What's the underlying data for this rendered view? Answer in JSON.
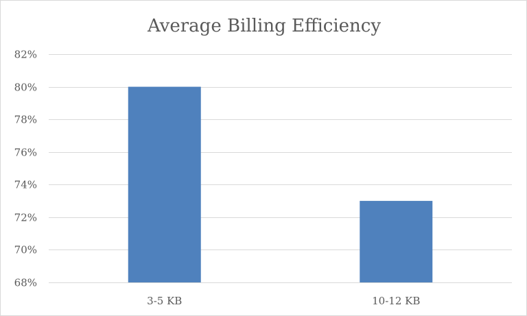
{
  "chart_data": {
    "type": "bar",
    "title": "Average Billing Efficiency",
    "xlabel": "",
    "ylabel": "",
    "categories": [
      "3-5 KB",
      "10-12 KB"
    ],
    "series": [
      {
        "values": [
          0.8,
          0.73
        ]
      }
    ],
    "ylim": [
      0.68,
      0.82
    ],
    "yticks": [
      0.68,
      0.7,
      0.72,
      0.74,
      0.76,
      0.78,
      0.8,
      0.82
    ],
    "ytick_labels": [
      "68%",
      "70%",
      "72%",
      "74%",
      "76%",
      "78%",
      "80%",
      "82%"
    ],
    "grid": true,
    "legend": "none",
    "colors": {
      "bar": "#4f81bd",
      "grid": "#d9d9d9",
      "text": "#595959"
    }
  }
}
